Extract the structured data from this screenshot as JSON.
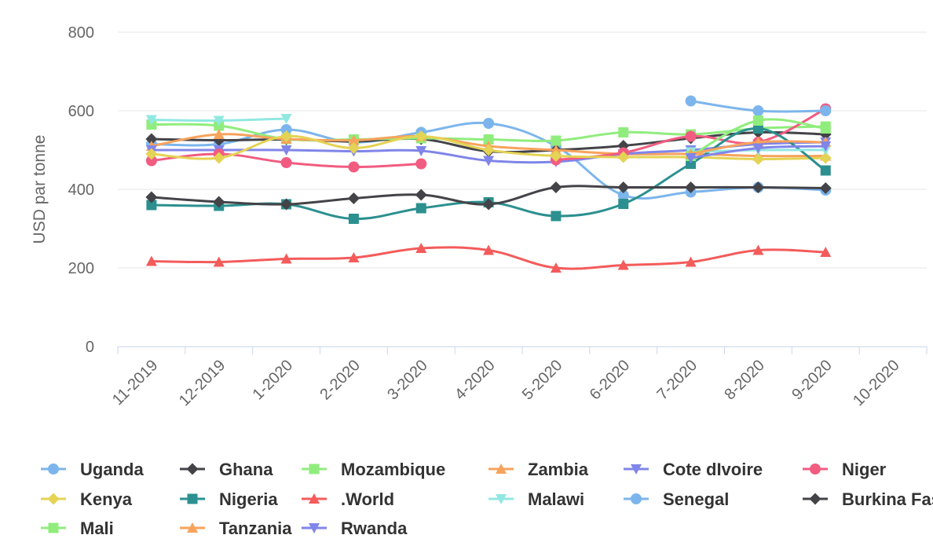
{
  "chart_data": {
    "type": "line",
    "title": "",
    "xlabel": "",
    "ylabel": "USD par tonne",
    "ylim": [
      0,
      800
    ],
    "yticks": [
      0,
      200,
      400,
      600,
      800
    ],
    "grid": true,
    "legend_position": "bottom",
    "categories": [
      "11-2019",
      "12-2019",
      "1-2020",
      "2-2020",
      "3-2020",
      "4-2020",
      "5-2020",
      "6-2020",
      "7-2020",
      "8-2020",
      "9-2020",
      "10-2020"
    ],
    "series": [
      {
        "name": "Uganda",
        "color": "#7cb5ec",
        "marker": "circle",
        "values": [
          515,
          515,
          552,
          520,
          545,
          568,
          510,
          385,
          393,
          405,
          398,
          null
        ]
      },
      {
        "name": "Ghana",
        "color": "#434348",
        "marker": "diamond",
        "values": [
          528,
          525,
          527,
          522,
          528,
          497,
          500,
          511,
          530,
          545,
          540,
          null
        ]
      },
      {
        "name": "Mozambique",
        "color": "#90ed7d",
        "marker": "square",
        "values": [
          565,
          562,
          528,
          527,
          530,
          527,
          524,
          545,
          540,
          555,
          560,
          null
        ]
      },
      {
        "name": "Zambia",
        "color": "#f7a35c",
        "marker": "triangle",
        "values": [
          510,
          540,
          528,
          525,
          535,
          510,
          500,
          490,
          490,
          485,
          485,
          null
        ]
      },
      {
        "name": "Cote dIvoire",
        "color": "#8085e9",
        "marker": "triangle-down",
        "values": [
          500,
          500,
          500,
          497,
          498,
          473,
          470,
          490,
          500,
          515,
          520,
          null
        ]
      },
      {
        "name": "Niger",
        "color": "#f15c80",
        "marker": "circle",
        "values": [
          473,
          490,
          468,
          457,
          465,
          null,
          475,
          493,
          535,
          520,
          605,
          null
        ]
      },
      {
        "name": "Kenya",
        "color": "#e4d354",
        "marker": "diamond",
        "values": [
          490,
          480,
          535,
          505,
          535,
          500,
          485,
          482,
          482,
          477,
          480,
          null
        ]
      },
      {
        "name": "Nigeria",
        "color": "#2b908f",
        "marker": "square",
        "values": [
          360,
          358,
          362,
          325,
          352,
          367,
          332,
          363,
          465,
          555,
          448,
          null
        ]
      },
      {
        "name": ".World",
        "color": "#f45b5b",
        "marker": "triangle",
        "values": [
          217,
          215,
          223,
          226,
          250,
          245,
          200,
          207,
          215,
          245,
          240,
          null
        ]
      },
      {
        "name": "Malawi",
        "color": "#91e8e1",
        "marker": "triangle-down",
        "values": [
          577,
          575,
          580,
          null,
          null,
          null,
          null,
          null,
          495,
          500,
          500,
          null
        ]
      },
      {
        "name": "Senegal",
        "color": "#7cb5ec",
        "marker": "circle",
        "values": [
          null,
          null,
          null,
          null,
          null,
          null,
          null,
          null,
          625,
          600,
          600,
          null
        ]
      },
      {
        "name": "Burkina Faso",
        "color": "#434348",
        "marker": "diamond",
        "values": [
          380,
          368,
          362,
          377,
          386,
          362,
          405,
          405,
          405,
          405,
          403,
          null
        ]
      },
      {
        "name": "Mali",
        "color": "#90ed7d",
        "marker": "square",
        "values": [
          null,
          null,
          null,
          null,
          null,
          null,
          null,
          null,
          485,
          575,
          555,
          null
        ]
      },
      {
        "name": "Tanzania",
        "color": "#f7a35c",
        "marker": "triangle",
        "values": [
          null,
          null,
          null,
          null,
          null,
          null,
          null,
          null,
          490,
          520,
          520,
          null
        ]
      },
      {
        "name": "Rwanda",
        "color": "#8085e9",
        "marker": "triangle-down",
        "values": [
          null,
          null,
          null,
          null,
          null,
          null,
          null,
          null,
          480,
          505,
          510,
          null
        ]
      }
    ]
  }
}
